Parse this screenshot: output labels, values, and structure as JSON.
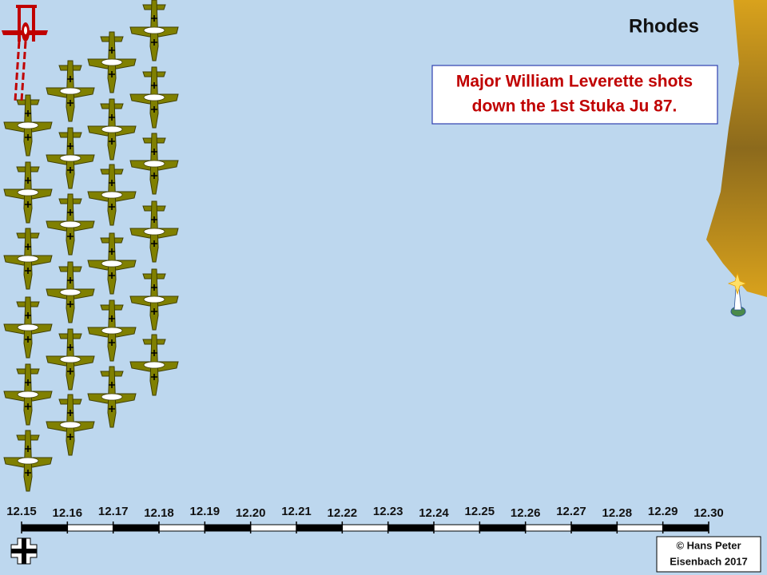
{
  "header": {
    "title": "Rhodes"
  },
  "caption": {
    "lines": [
      "Major William Leverette shots",
      "down the 1st Stuka Ju 87."
    ]
  },
  "timeline": {
    "labels": [
      "12.15",
      "12.16",
      "12.17",
      "12.18",
      "12.19",
      "12.20",
      "12.21",
      "12.22",
      "12.23",
      "12.24",
      "12.25",
      "12.26",
      "12.27",
      "12.28",
      "12.29",
      "12.30"
    ]
  },
  "footer": {
    "copyright": [
      "© Hans Peter",
      "Eisenbach 2017"
    ]
  }
}
